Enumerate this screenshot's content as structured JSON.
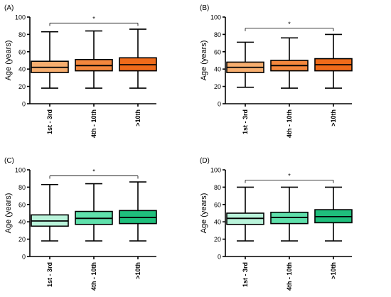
{
  "chart_data": [
    {
      "type": "box",
      "panel_label": "(A)",
      "ylabel": "Age (years)",
      "ylim": [
        0,
        100
      ],
      "yticks": [
        0,
        20,
        40,
        60,
        80,
        100
      ],
      "categories": [
        "1st - 3rd",
        "4th - 10th",
        ">10th"
      ],
      "boxes": [
        {
          "min": 18,
          "q1": 36,
          "median": 42,
          "q3": 49,
          "max": 83
        },
        {
          "min": 18,
          "q1": 38,
          "median": 44,
          "q3": 51,
          "max": 84
        },
        {
          "min": 18,
          "q1": 38,
          "median": 45,
          "q3": 53,
          "max": 86
        }
      ],
      "colors": [
        "#f7ae6f",
        "#f3873d",
        "#ef6b1a"
      ],
      "significance": {
        "from": 0,
        "to": 2,
        "y": 93,
        "label": "*"
      }
    },
    {
      "type": "box",
      "panel_label": "(B)",
      "ylabel": "Age (years)",
      "ylim": [
        0,
        100
      ],
      "yticks": [
        0,
        20,
        40,
        60,
        80,
        100
      ],
      "categories": [
        "1st - 3rd",
        "4th - 10th",
        ">10th"
      ],
      "boxes": [
        {
          "min": 19,
          "q1": 36,
          "median": 42,
          "q3": 48,
          "max": 71
        },
        {
          "min": 18,
          "q1": 38,
          "median": 44,
          "q3": 50,
          "max": 76
        },
        {
          "min": 18,
          "q1": 38,
          "median": 45,
          "q3": 52,
          "max": 80
        }
      ],
      "colors": [
        "#f7ae6f",
        "#f3873d",
        "#ef6b1a"
      ],
      "significance": {
        "from": 0,
        "to": 2,
        "y": 87,
        "label": "*"
      }
    },
    {
      "type": "box",
      "panel_label": "(C)",
      "ylabel": "Age (years)",
      "ylim": [
        0,
        100
      ],
      "yticks": [
        0,
        20,
        40,
        60,
        80,
        100
      ],
      "categories": [
        "1st - 3rd",
        "4th - 10th",
        ">10th"
      ],
      "boxes": [
        {
          "min": 18,
          "q1": 35,
          "median": 41,
          "q3": 48,
          "max": 83
        },
        {
          "min": 18,
          "q1": 37,
          "median": 44,
          "q3": 52,
          "max": 84
        },
        {
          "min": 18,
          "q1": 38,
          "median": 45,
          "q3": 53,
          "max": 86
        }
      ],
      "colors": [
        "#b9f3da",
        "#5fe0ab",
        "#1fbf7c"
      ],
      "significance": {
        "from": 0,
        "to": 2,
        "y": 93,
        "label": "*"
      }
    },
    {
      "type": "box",
      "panel_label": "(D)",
      "ylabel": "Age (years)",
      "ylim": [
        0,
        100
      ],
      "yticks": [
        0,
        20,
        40,
        60,
        80,
        100
      ],
      "categories": [
        "1st - 3rd",
        "4th - 10th",
        ">10th"
      ],
      "boxes": [
        {
          "min": 18,
          "q1": 37,
          "median": 44,
          "q3": 50,
          "max": 80
        },
        {
          "min": 18,
          "q1": 38,
          "median": 45,
          "q3": 51,
          "max": 80
        },
        {
          "min": 18,
          "q1": 39,
          "median": 46,
          "q3": 54,
          "max": 80
        }
      ],
      "colors": [
        "#b9f3da",
        "#5fe0ab",
        "#1fbf7c"
      ],
      "significance": {
        "from": 0,
        "to": 2,
        "y": 88,
        "label": "*"
      }
    }
  ]
}
